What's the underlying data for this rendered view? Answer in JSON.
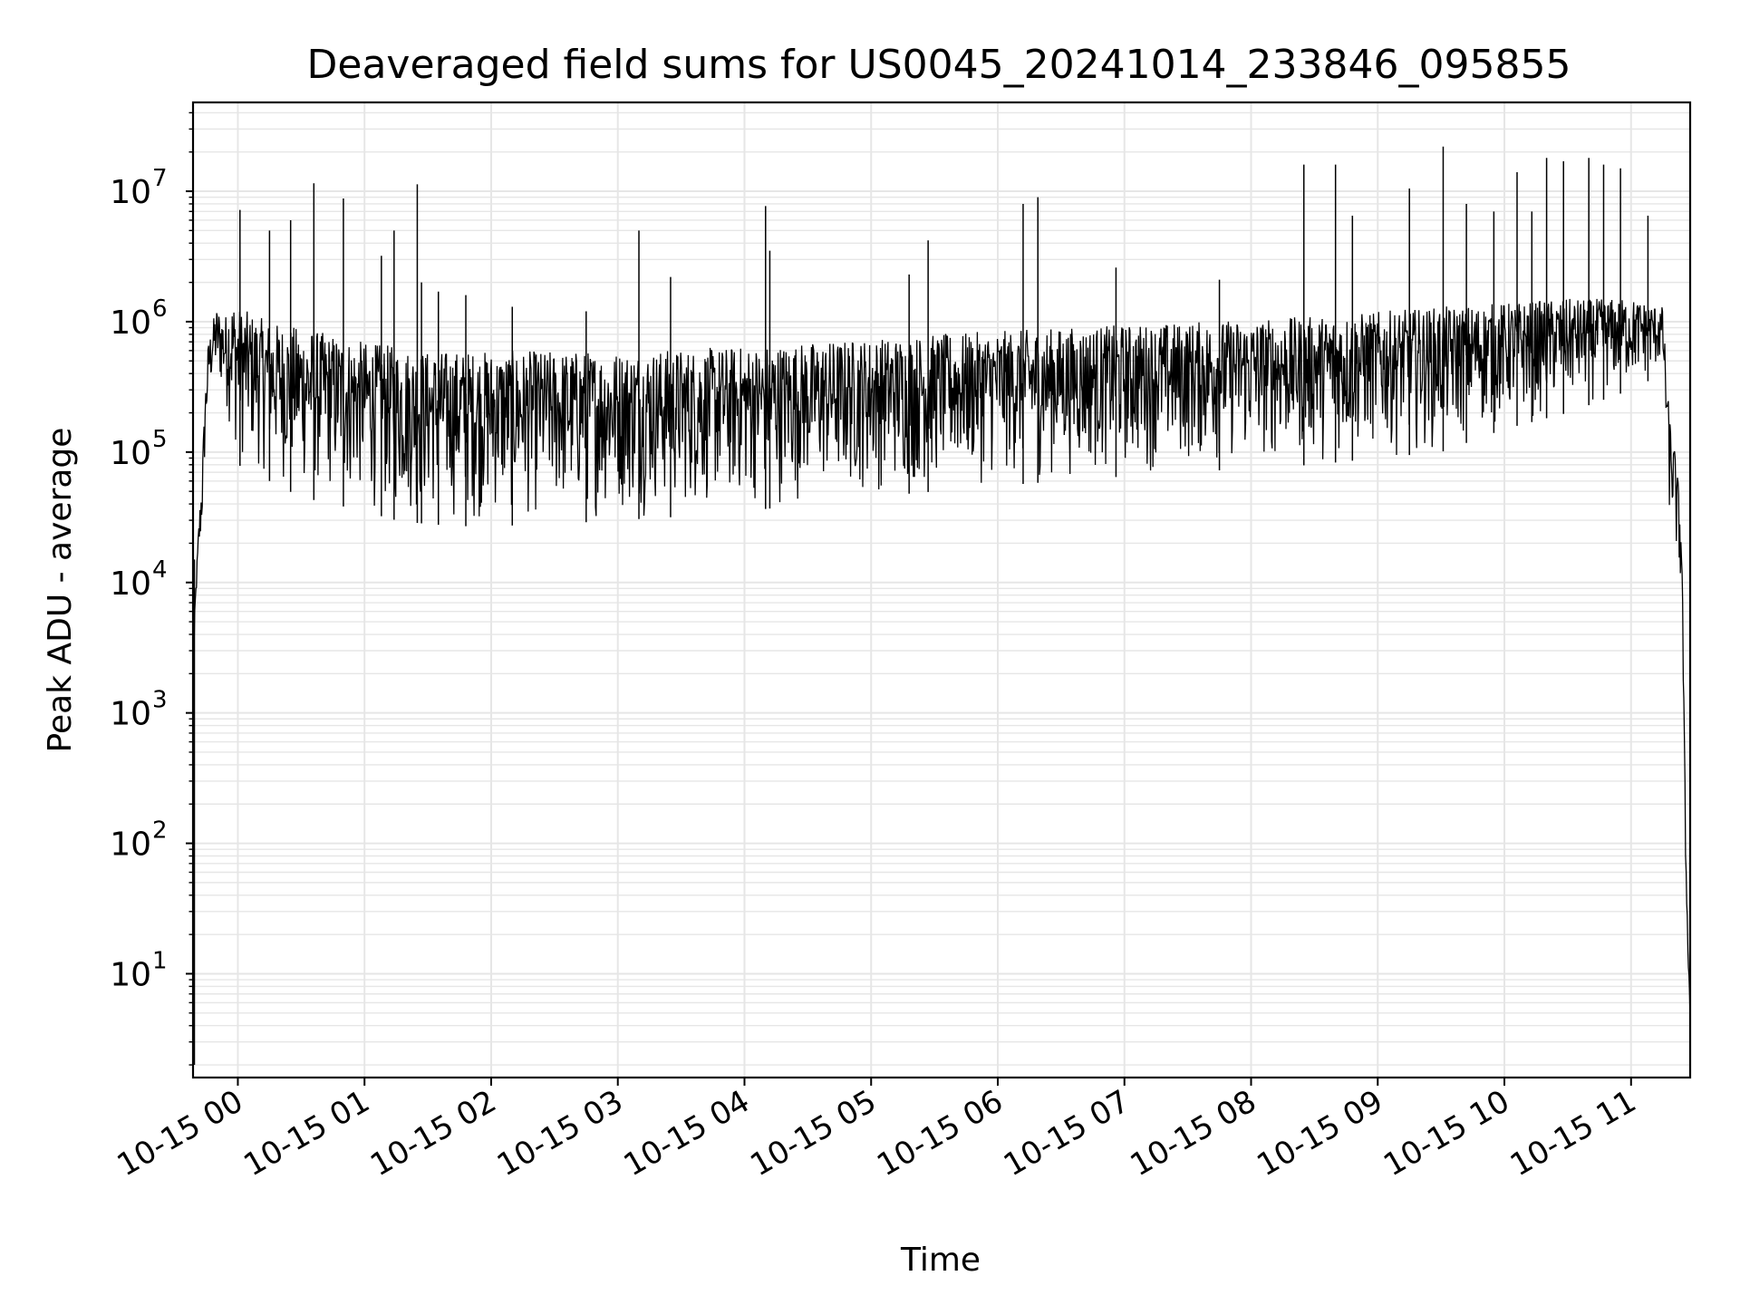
{
  "chart_data": {
    "type": "line",
    "title": "Deaveraged field sums for US0045_20241014_233846_095855",
    "xlabel": "Time",
    "ylabel": "Peak ADU - average",
    "xscale": "time",
    "yscale": "log",
    "xlim": [
      "2024-10-14T23:38:46",
      "2024-10-15T11:28:00"
    ],
    "ylim": [
      1.6,
      48000000
    ],
    "grid": "major and minor",
    "line_color": "#000000",
    "grid_color": "#e6e6e6",
    "x_ticks": [
      {
        "value": "2024-10-15T00:00:00",
        "label": "10-15 00"
      },
      {
        "value": "2024-10-15T01:00:00",
        "label": "10-15 01"
      },
      {
        "value": "2024-10-15T02:00:00",
        "label": "10-15 02"
      },
      {
        "value": "2024-10-15T03:00:00",
        "label": "10-15 03"
      },
      {
        "value": "2024-10-15T04:00:00",
        "label": "10-15 04"
      },
      {
        "value": "2024-10-15T05:00:00",
        "label": "10-15 05"
      },
      {
        "value": "2024-10-15T06:00:00",
        "label": "10-15 06"
      },
      {
        "value": "2024-10-15T07:00:00",
        "label": "10-15 07"
      },
      {
        "value": "2024-10-15T08:00:00",
        "label": "10-15 08"
      },
      {
        "value": "2024-10-15T09:00:00",
        "label": "10-15 09"
      },
      {
        "value": "2024-10-15T10:00:00",
        "label": "10-15 10"
      },
      {
        "value": "2024-10-15T11:00:00",
        "label": "10-15 11"
      }
    ],
    "y_ticks": [
      {
        "value": 10,
        "base": "10",
        "exp": "1"
      },
      {
        "value": 100,
        "base": "10",
        "exp": "2"
      },
      {
        "value": 1000,
        "base": "10",
        "exp": "3"
      },
      {
        "value": 10000,
        "base": "10",
        "exp": "4"
      },
      {
        "value": 100000,
        "base": "10",
        "exp": "5"
      },
      {
        "value": 1000000,
        "base": "10",
        "exp": "6"
      },
      {
        "value": 10000000,
        "base": "10",
        "exp": "7"
      }
    ],
    "series": [
      {
        "x": [
          "2024-10-14T23:38:46",
          "2024-10-14T23:39:20",
          "2024-10-14T23:41:30",
          "2024-10-14T23:43:00",
          "2024-10-14T23:44:30",
          "2024-10-14T23:46:00",
          "2024-10-14T23:48:00",
          "2024-10-14T23:50:00",
          "2024-10-14T23:52:00",
          "2024-10-14T23:54:00",
          "2024-10-14T23:56:00",
          "2024-10-14T23:58:00",
          "2024-10-15T00:00:00",
          "2024-10-15T00:15:00",
          "2024-10-15T00:30:00",
          "2024-10-15T00:45:00",
          "2024-10-15T01:00:00",
          "2024-10-15T01:15:00",
          "2024-10-15T01:30:00",
          "2024-10-15T01:45:00",
          "2024-10-15T02:00:00",
          "2024-10-15T02:30:00",
          "2024-10-15T03:00:00",
          "2024-10-15T03:30:00",
          "2024-10-15T04:00:00",
          "2024-10-15T04:30:00",
          "2024-10-15T05:00:00",
          "2024-10-15T05:30:00",
          "2024-10-15T06:00:00",
          "2024-10-15T06:30:00",
          "2024-10-15T07:00:00",
          "2024-10-15T07:30:00",
          "2024-10-15T08:00:00",
          "2024-10-15T08:30:00",
          "2024-10-15T09:00:00",
          "2024-10-15T09:30:00",
          "2024-10-15T10:00:00",
          "2024-10-15T10:30:00",
          "2024-10-15T11:00:00",
          "2024-10-15T11:15:00",
          "2024-10-15T11:18:00",
          "2024-10-15T11:21:00",
          "2024-10-15T11:24:00",
          "2024-10-15T11:26:00",
          "2024-10-15T11:28:00"
        ],
        "upper": [
          2.0,
          5000,
          30000,
          70000,
          300000,
          700000,
          1000000,
          1300000,
          1200000,
          1100000,
          1400000,
          1500000,
          1300000,
          1000000,
          900000,
          800000,
          700000,
          650000,
          600000,
          600000,
          600000,
          600000,
          600000,
          620000,
          650000,
          700000,
          750000,
          800000,
          850000,
          900000,
          950000,
          1000000,
          1050000,
          1100000,
          1200000,
          1300000,
          1400000,
          1500000,
          1500000,
          1300000,
          200000,
          100000,
          30000,
          80,
          5
        ],
        "lower": [
          2.0,
          5000,
          12000,
          20000,
          80000,
          200000,
          300000,
          300000,
          250000,
          200000,
          150000,
          100000,
          80000,
          60000,
          45000,
          40000,
          35000,
          30000,
          28000,
          27000,
          27000,
          28000,
          30000,
          32000,
          35000,
          40000,
          45000,
          50000,
          55000,
          60000,
          65000,
          70000,
          75000,
          80000,
          90000,
          100000,
          150000,
          200000,
          300000,
          400000,
          30000,
          15000,
          6000,
          40,
          3.5
        ]
      }
    ],
    "spikes": [
      {
        "t": "2024-10-15T00:01:00",
        "v": 7200000
      },
      {
        "t": "2024-10-15T00:15:00",
        "v": 5000000
      },
      {
        "t": "2024-10-15T00:25:00",
        "v": 6000000
      },
      {
        "t": "2024-10-15T00:36:00",
        "v": 11500000
      },
      {
        "t": "2024-10-15T00:50:00",
        "v": 8800000
      },
      {
        "t": "2024-10-15T01:08:00",
        "v": 3200000
      },
      {
        "t": "2024-10-15T01:14:00",
        "v": 5000000
      },
      {
        "t": "2024-10-15T01:25:00",
        "v": 11300000
      },
      {
        "t": "2024-10-15T01:27:00",
        "v": 2000000
      },
      {
        "t": "2024-10-15T01:35:00",
        "v": 1700000
      },
      {
        "t": "2024-10-15T01:48:00",
        "v": 1600000
      },
      {
        "t": "2024-10-15T02:10:00",
        "v": 1300000
      },
      {
        "t": "2024-10-15T02:45:00",
        "v": 1200000
      },
      {
        "t": "2024-10-15T03:10:00",
        "v": 5000000
      },
      {
        "t": "2024-10-15T03:25:00",
        "v": 2200000
      },
      {
        "t": "2024-10-15T04:10:00",
        "v": 7700000
      },
      {
        "t": "2024-10-15T04:12:00",
        "v": 3500000
      },
      {
        "t": "2024-10-15T05:18:00",
        "v": 2300000
      },
      {
        "t": "2024-10-15T05:27:00",
        "v": 4200000
      },
      {
        "t": "2024-10-15T06:12:00",
        "v": 8000000
      },
      {
        "t": "2024-10-15T06:19:00",
        "v": 9000000
      },
      {
        "t": "2024-10-15T06:56:00",
        "v": 2600000
      },
      {
        "t": "2024-10-15T07:45:00",
        "v": 2100000
      },
      {
        "t": "2024-10-15T08:25:00",
        "v": 16000000
      },
      {
        "t": "2024-10-15T08:40:00",
        "v": 16000000
      },
      {
        "t": "2024-10-15T08:48:00",
        "v": 6500000
      },
      {
        "t": "2024-10-15T09:15:00",
        "v": 10500000
      },
      {
        "t": "2024-10-15T09:31:00",
        "v": 22000000
      },
      {
        "t": "2024-10-15T09:42:00",
        "v": 8000000
      },
      {
        "t": "2024-10-15T09:55:00",
        "v": 7000000
      },
      {
        "t": "2024-10-15T10:06:00",
        "v": 14000000
      },
      {
        "t": "2024-10-15T10:13:00",
        "v": 7000000
      },
      {
        "t": "2024-10-15T10:20:00",
        "v": 18000000
      },
      {
        "t": "2024-10-15T10:28:00",
        "v": 17000000
      },
      {
        "t": "2024-10-15T10:40:00",
        "v": 18000000
      },
      {
        "t": "2024-10-15T10:47:00",
        "v": 16000000
      },
      {
        "t": "2024-10-15T10:55:00",
        "v": 15000000
      },
      {
        "t": "2024-10-15T11:08:00",
        "v": 6500000
      }
    ]
  }
}
